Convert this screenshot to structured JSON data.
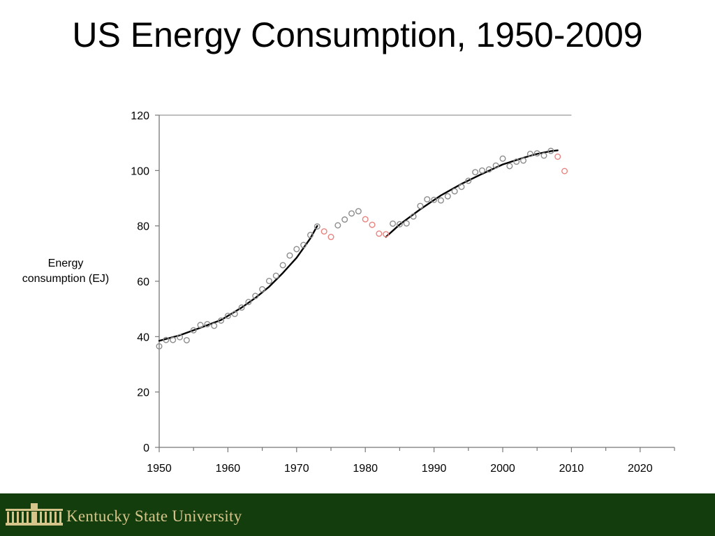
{
  "slide": {
    "title": "US Energy Consumption, 1950-2009",
    "footer_text": "Kentucky State University"
  },
  "colors": {
    "footer_background": "#143d0e",
    "footer_text": "#d6c58a",
    "gray_markers": "#8c8c8c",
    "red_markers": "#e8837e",
    "fit_curves": "#000000"
  },
  "chart_data": {
    "type": "scatter",
    "title": "",
    "xlabel": "",
    "ylabel": "Energy consumption (EJ)",
    "xlim": [
      1950,
      2025
    ],
    "ylim": [
      0,
      120
    ],
    "x_ticks": [
      1950,
      1960,
      1970,
      1980,
      1990,
      2000,
      2010,
      2020
    ],
    "y_ticks": [
      0,
      20,
      40,
      60,
      80,
      100,
      120
    ],
    "grid": false,
    "series": [
      {
        "marker": "gray-circle",
        "points": [
          [
            1950,
            36.5
          ],
          [
            1951,
            38.8
          ],
          [
            1952,
            38.8
          ],
          [
            1953,
            39.8
          ],
          [
            1954,
            38.7
          ],
          [
            1955,
            42.3
          ],
          [
            1956,
            44.2
          ],
          [
            1957,
            44.5
          ],
          [
            1958,
            43.9
          ],
          [
            1959,
            45.8
          ],
          [
            1960,
            47.5
          ],
          [
            1961,
            48.2
          ],
          [
            1962,
            50.5
          ],
          [
            1963,
            52.5
          ],
          [
            1964,
            54.7
          ],
          [
            1965,
            57.1
          ],
          [
            1966,
            60.1
          ],
          [
            1967,
            62.0
          ],
          [
            1968,
            65.8
          ],
          [
            1969,
            69.3
          ],
          [
            1970,
            71.6
          ],
          [
            1971,
            73.1
          ],
          [
            1972,
            76.7
          ],
          [
            1973,
            79.8
          ],
          [
            1976,
            80.2
          ],
          [
            1977,
            82.3
          ],
          [
            1978,
            84.5
          ],
          [
            1979,
            85.3
          ],
          [
            1984,
            80.8
          ],
          [
            1985,
            80.6
          ],
          [
            1986,
            80.9
          ],
          [
            1987,
            83.4
          ],
          [
            1988,
            87.2
          ],
          [
            1989,
            89.6
          ],
          [
            1990,
            89.4
          ],
          [
            1991,
            89.2
          ],
          [
            1992,
            90.7
          ],
          [
            1993,
            92.5
          ],
          [
            1994,
            94.1
          ],
          [
            1995,
            96.3
          ],
          [
            1996,
            99.4
          ],
          [
            1997,
            100.0
          ],
          [
            1998,
            100.4
          ],
          [
            1999,
            101.8
          ],
          [
            2000,
            104.3
          ],
          [
            2001,
            101.6
          ],
          [
            2002,
            103.2
          ],
          [
            2003,
            103.6
          ],
          [
            2004,
            106.0
          ],
          [
            2005,
            106.2
          ],
          [
            2006,
            105.4
          ],
          [
            2007,
            107.1
          ]
        ]
      },
      {
        "marker": "red-circle",
        "points": [
          [
            1974,
            78.0
          ],
          [
            1975,
            76.0
          ],
          [
            1980,
            82.4
          ],
          [
            1981,
            80.4
          ],
          [
            1982,
            77.2
          ],
          [
            1983,
            77.0
          ],
          [
            2008,
            105.0
          ],
          [
            2009,
            99.8
          ]
        ]
      }
    ],
    "fit_curves": [
      {
        "points": [
          [
            1950,
            38.5
          ],
          [
            1953,
            40.5
          ],
          [
            1956,
            43.2
          ],
          [
            1959,
            46.0
          ],
          [
            1962,
            50.5
          ],
          [
            1964,
            54.0
          ],
          [
            1966,
            58.0
          ],
          [
            1968,
            63.0
          ],
          [
            1970,
            68.5
          ],
          [
            1972,
            75.5
          ],
          [
            1973,
            80.0
          ]
        ]
      },
      {
        "points": [
          [
            1983,
            76.0
          ],
          [
            1985,
            80.5
          ],
          [
            1988,
            86.0
          ],
          [
            1991,
            91.0
          ],
          [
            1994,
            95.2
          ],
          [
            1997,
            98.8
          ],
          [
            2000,
            102.2
          ],
          [
            2003,
            104.6
          ],
          [
            2005,
            106.0
          ],
          [
            2007,
            107.0
          ],
          [
            2008,
            107.3
          ]
        ]
      }
    ]
  }
}
